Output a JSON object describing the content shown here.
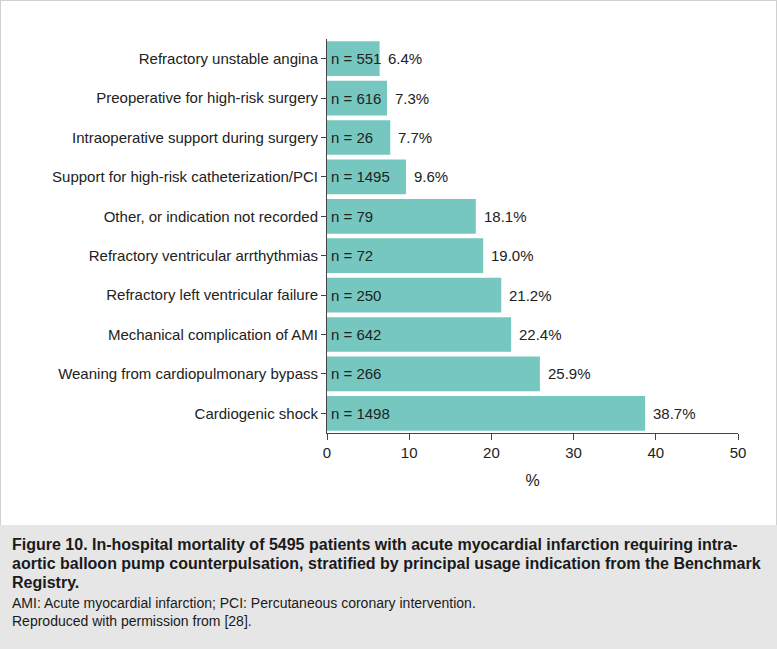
{
  "chart_data": {
    "type": "bar",
    "orientation": "horizontal",
    "categories": [
      "Refractory unstable angina",
      "Preoperative for high-risk surgery",
      "Intraoperative support during surgery",
      "Support for high-risk catheterization/PCI",
      "Other, or indication not recorded",
      "Refractory ventricular arrthythmias",
      "Refractory left ventricular failure",
      "Mechanical complication of AMI",
      "Weaning from cardiopulmonary bypass",
      "Cardiogenic shock"
    ],
    "values": [
      6.4,
      7.3,
      7.7,
      9.6,
      18.1,
      19.0,
      21.2,
      22.4,
      25.9,
      38.7
    ],
    "value_labels": [
      "6.4%",
      "7.3%",
      "7.7%",
      "9.6%",
      "18.1%",
      "19.0%",
      "21.2%",
      "22.4%",
      "25.9%",
      "38.7%"
    ],
    "sample_sizes": [
      551,
      616,
      26,
      1495,
      79,
      72,
      250,
      642,
      266,
      1498
    ],
    "sample_size_labels": [
      "n = 551",
      "n = 616",
      "n = 26",
      "n = 1495",
      "n = 79",
      "n = 72",
      "n = 250",
      "n = 642",
      "n = 266",
      "n = 1498"
    ],
    "color": "#76c7c0",
    "xlabel": "%",
    "xlim": [
      0,
      50
    ],
    "xticks": [
      0,
      10,
      20,
      30,
      40,
      50
    ],
    "grid": false,
    "data_labels": true,
    "caption": {
      "title": "Figure 10. In-hospital mortality of 5495 patients with acute myocardial infarction requiring intra-aortic balloon pump counterpulsation, stratified by principal usage indication from the Benchmark Registry.",
      "lines": [
        "AMI: Acute myocardial infarction; PCI: Percutaneous coronary intervention.",
        "Reproduced with permission from [28]."
      ]
    }
  }
}
